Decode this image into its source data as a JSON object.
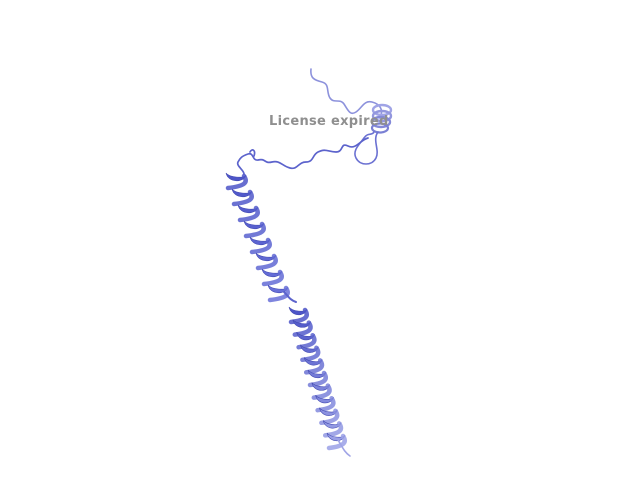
{
  "viewer": {
    "watermark": "License expired"
  },
  "structure": {
    "representation": "cartoon",
    "colors": {
      "helix_dark": "#4d55c8",
      "helix_mid": "#6870d8",
      "helix_light": "#9aa0e6",
      "coil": "#5c63cc",
      "coil_light": "#8d92dc",
      "background": "#ffffff"
    }
  }
}
